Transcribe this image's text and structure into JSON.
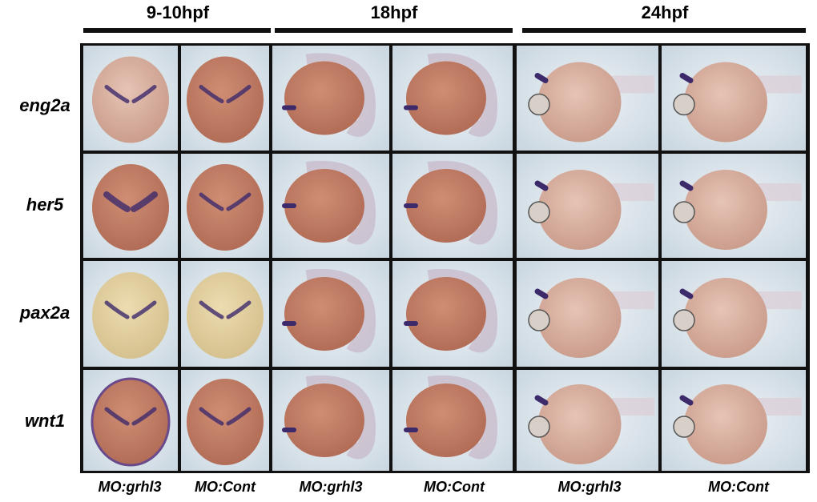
{
  "figure": {
    "stages": [
      "9-10hpf",
      "18hpf",
      "24hpf"
    ],
    "genes": [
      "eng2a",
      "her5",
      "pax2a",
      "wnt1"
    ],
    "conditions": [
      "MO:grhl3",
      "MO:Cont",
      "MO:grhl3",
      "MO:Cont",
      "MO:grhl3",
      "MO:Cont"
    ]
  }
}
